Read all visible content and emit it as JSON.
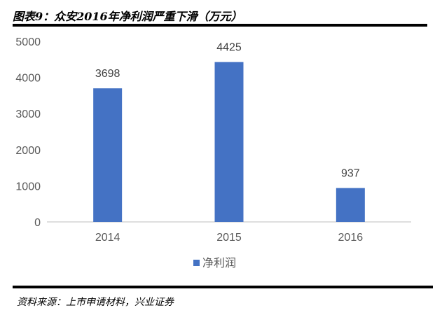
{
  "figure": {
    "title": "图表9：众安2016年净利润严重下滑（万元）",
    "source": "资料来源：上市申请材料，兴业证券"
  },
  "chart_data": {
    "type": "bar",
    "categories": [
      "2014",
      "2015",
      "2016"
    ],
    "series": [
      {
        "name": "净利润",
        "values": [
          3698,
          4425,
          937
        ],
        "color": "#4472C4"
      }
    ],
    "data_labels": [
      "3698",
      "4425",
      "937"
    ],
    "ylim": [
      0,
      5000
    ],
    "yticks": [
      0,
      1000,
      2000,
      3000,
      4000,
      5000
    ],
    "grid": false,
    "legend": "bottom"
  }
}
